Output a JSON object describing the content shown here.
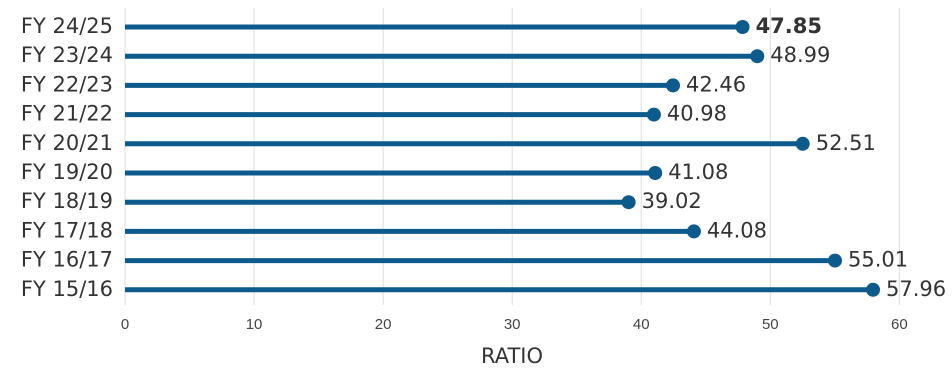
{
  "chart_data": {
    "type": "lollipop",
    "categories": [
      "FY 24/25",
      "FY 23/24",
      "FY 22/23",
      "FY 21/22",
      "FY 20/21",
      "FY 19/20",
      "FY 18/19",
      "FY 17/18",
      "FY 16/17",
      "FY 15/16"
    ],
    "values": [
      47.85,
      48.99,
      42.46,
      40.98,
      52.51,
      41.08,
      39.02,
      44.08,
      55.01,
      57.96
    ],
    "color": "#0d5a8c",
    "xlabel": "RATIO",
    "xlim": [
      0,
      64
    ],
    "xticks": [
      0,
      10,
      20,
      30,
      40,
      50,
      60
    ],
    "grid": true
  }
}
